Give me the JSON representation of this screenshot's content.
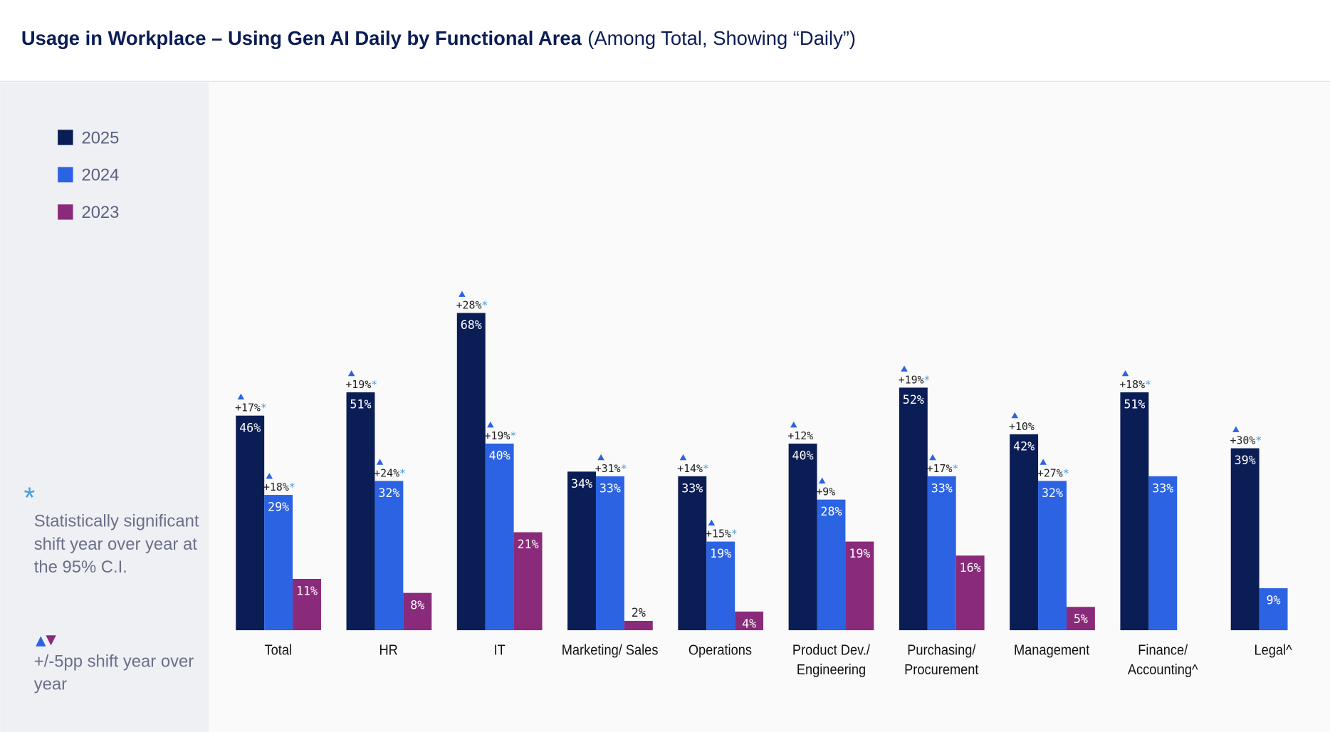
{
  "chart_data": {
    "type": "bar",
    "title": "Usage in Workplace – Using Gen AI Daily by Functional Area",
    "subtitle": "(Among Total, Showing “Daily”)",
    "categories": [
      "Total",
      "HR",
      "IT",
      "Marketing/ Sales",
      "Operations",
      "Product Dev./\nEngineering",
      "Purchasing/\nProcurement",
      "Management",
      "Finance/\nAccounting^",
      "Legal^"
    ],
    "series": [
      {
        "name": "2025",
        "color": "#0b1d55",
        "values": [
          46,
          51,
          68,
          34,
          33,
          40,
          52,
          42,
          51,
          39
        ],
        "value_labels": [
          "46%",
          "51%",
          "68%",
          "34%",
          "33%",
          "40%",
          "52%",
          "42%",
          "51%",
          "39%"
        ],
        "shifts": [
          {
            "text": "+17%",
            "sig": "*"
          },
          {
            "text": "+19%",
            "sig": "*"
          },
          {
            "text": "+28%",
            "sig": "*"
          },
          null,
          {
            "text": "+14%",
            "sig": "*"
          },
          {
            "text": "+12%"
          },
          {
            "text": "+19%",
            "sig": "*"
          },
          {
            "text": "+10%"
          },
          {
            "text": "+18%",
            "sig": "*"
          },
          {
            "text": "+30%",
            "sig": "*"
          }
        ]
      },
      {
        "name": "2024",
        "color": "#2b63e3",
        "values": [
          29,
          32,
          40,
          33,
          19,
          28,
          33,
          32,
          33,
          9
        ],
        "value_labels": [
          "29%",
          "32%",
          "40%",
          "33%",
          "19%",
          "28%",
          "33%",
          "32%",
          "33%",
          "9%"
        ],
        "shifts": [
          {
            "text": "+18%",
            "sig": "*"
          },
          {
            "text": "+24%",
            "sig": "*"
          },
          {
            "text": "+19%",
            "sig": "*"
          },
          {
            "text": "+31%",
            "sig": "*"
          },
          {
            "text": "+15%",
            "sig": "*"
          },
          {
            "text": "+9%"
          },
          {
            "text": "+17%",
            "sig": "*"
          },
          {
            "text": "+27%",
            "sig": "*"
          },
          null,
          null
        ]
      },
      {
        "name": "2023",
        "color": "#8a2a7a",
        "values": [
          11,
          8,
          21,
          2,
          4,
          19,
          16,
          5,
          null,
          null
        ],
        "value_labels": [
          "11%",
          "8%",
          "21%",
          "2%",
          "4%",
          "19%",
          "16%",
          "5%",
          null,
          null
        ],
        "shifts": [
          null,
          null,
          null,
          null,
          null,
          null,
          null,
          null,
          null,
          null
        ]
      }
    ],
    "notes": {
      "sig_symbol": "*",
      "sig_text": "Statistically significant shift year over year at the 95% C.I.",
      "shift_text": "+/-5pp shift year over year"
    }
  }
}
